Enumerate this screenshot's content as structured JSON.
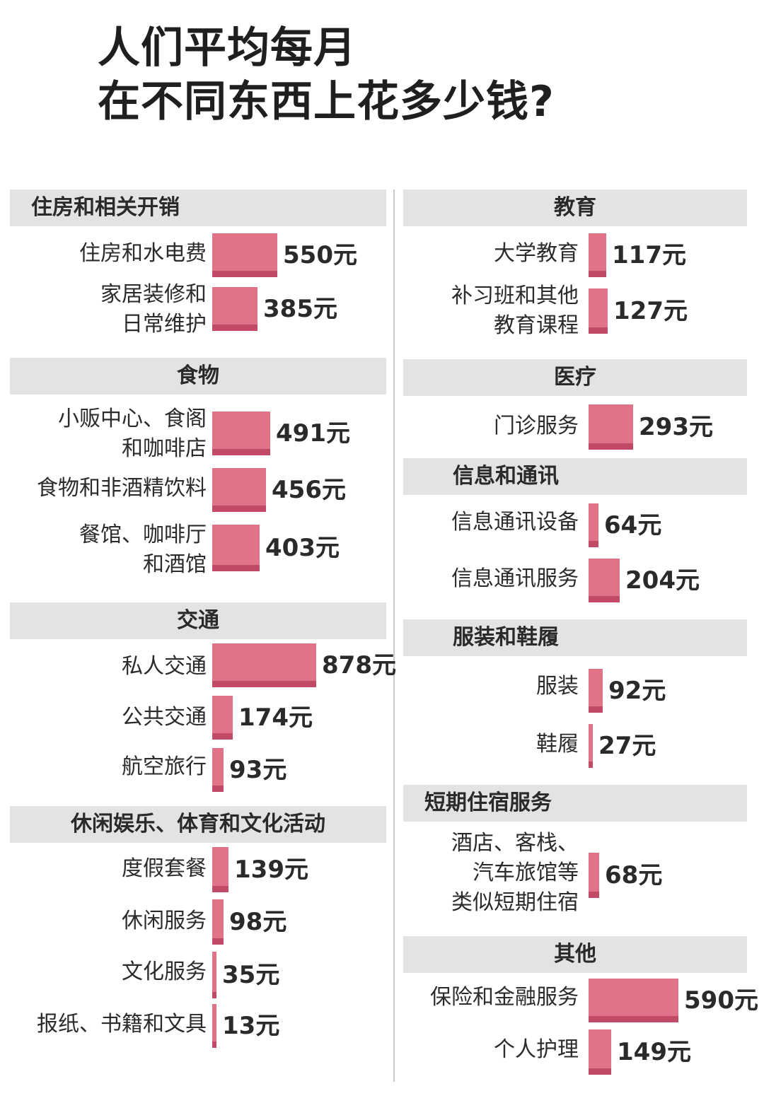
{
  "title_lines": [
    "人们平均每月",
    "在不同东西上花多少钱?"
  ],
  "colors": {
    "bar": "#e07388",
    "bar_shadow": "#c24a66",
    "header_bg": "#e3e3e3"
  },
  "chart_data": {
    "type": "bar",
    "orientation": "horizontal",
    "unit": "元",
    "groups": [
      {
        "name": "住房和相关开销",
        "items": [
          {
            "label": [
              "住房和水电费"
            ],
            "value": 550,
            "value_label": "550元"
          },
          {
            "label": [
              "家居装修和",
              "日常维护"
            ],
            "value": 385,
            "value_label": "385元"
          }
        ]
      },
      {
        "name": "食物",
        "items": [
          {
            "label": [
              "小贩中心、食阁",
              "和咖啡店"
            ],
            "value": 491,
            "value_label": "491元"
          },
          {
            "label": [
              "食物和非酒精饮料"
            ],
            "value": 456,
            "value_label": "456元"
          },
          {
            "label": [
              "餐馆、咖啡厅",
              "和酒馆"
            ],
            "value": 403,
            "value_label": "403元"
          }
        ]
      },
      {
        "name": "交通",
        "items": [
          {
            "label": [
              "私人交通"
            ],
            "value": 878,
            "value_label": "878元"
          },
          {
            "label": [
              "公共交通"
            ],
            "value": 174,
            "value_label": "174元"
          },
          {
            "label": [
              "航空旅行"
            ],
            "value": 93,
            "value_label": "93元"
          }
        ]
      },
      {
        "name": "休闲娱乐、体育和文化活动",
        "items": [
          {
            "label": [
              "度假套餐"
            ],
            "value": 139,
            "value_label": "139元"
          },
          {
            "label": [
              "休闲服务"
            ],
            "value": 98,
            "value_label": "98元"
          },
          {
            "label": [
              "文化服务"
            ],
            "value": 35,
            "value_label": "35元"
          },
          {
            "label": [
              "报纸、书籍和文具"
            ],
            "value": 13,
            "value_label": "13元"
          }
        ]
      },
      {
        "name": "教育",
        "items": [
          {
            "label": [
              "大学教育"
            ],
            "value": 117,
            "value_label": "117元"
          },
          {
            "label": [
              "补习班和其他",
              "教育课程"
            ],
            "value": 127,
            "value_label": "127元"
          }
        ]
      },
      {
        "name": "医疗",
        "items": [
          {
            "label": [
              "门诊服务"
            ],
            "value": 293,
            "value_label": "293元"
          }
        ]
      },
      {
        "name": "信息和通讯",
        "items": [
          {
            "label": [
              "信息通讯设备"
            ],
            "value": 64,
            "value_label": "64元"
          },
          {
            "label": [
              "信息通讯服务"
            ],
            "value": 204,
            "value_label": "204元"
          }
        ]
      },
      {
        "name": "服装和鞋履",
        "items": [
          {
            "label": [
              "服装"
            ],
            "value": 92,
            "value_label": "92元"
          },
          {
            "label": [
              "鞋履"
            ],
            "value": 27,
            "value_label": "27元"
          }
        ]
      },
      {
        "name": "短期住宿服务",
        "items": [
          {
            "label": [
              "酒店、客栈、",
              "汽车旅馆等",
              "类似短期住宿"
            ],
            "value": 68,
            "value_label": "68元"
          }
        ]
      },
      {
        "name": "其他",
        "items": [
          {
            "label": [
              "保险和金融服务"
            ],
            "value": 590,
            "value_label": "590元"
          },
          {
            "label": [
              "个人护理"
            ],
            "value": 149,
            "value_label": "149元"
          }
        ]
      }
    ]
  }
}
